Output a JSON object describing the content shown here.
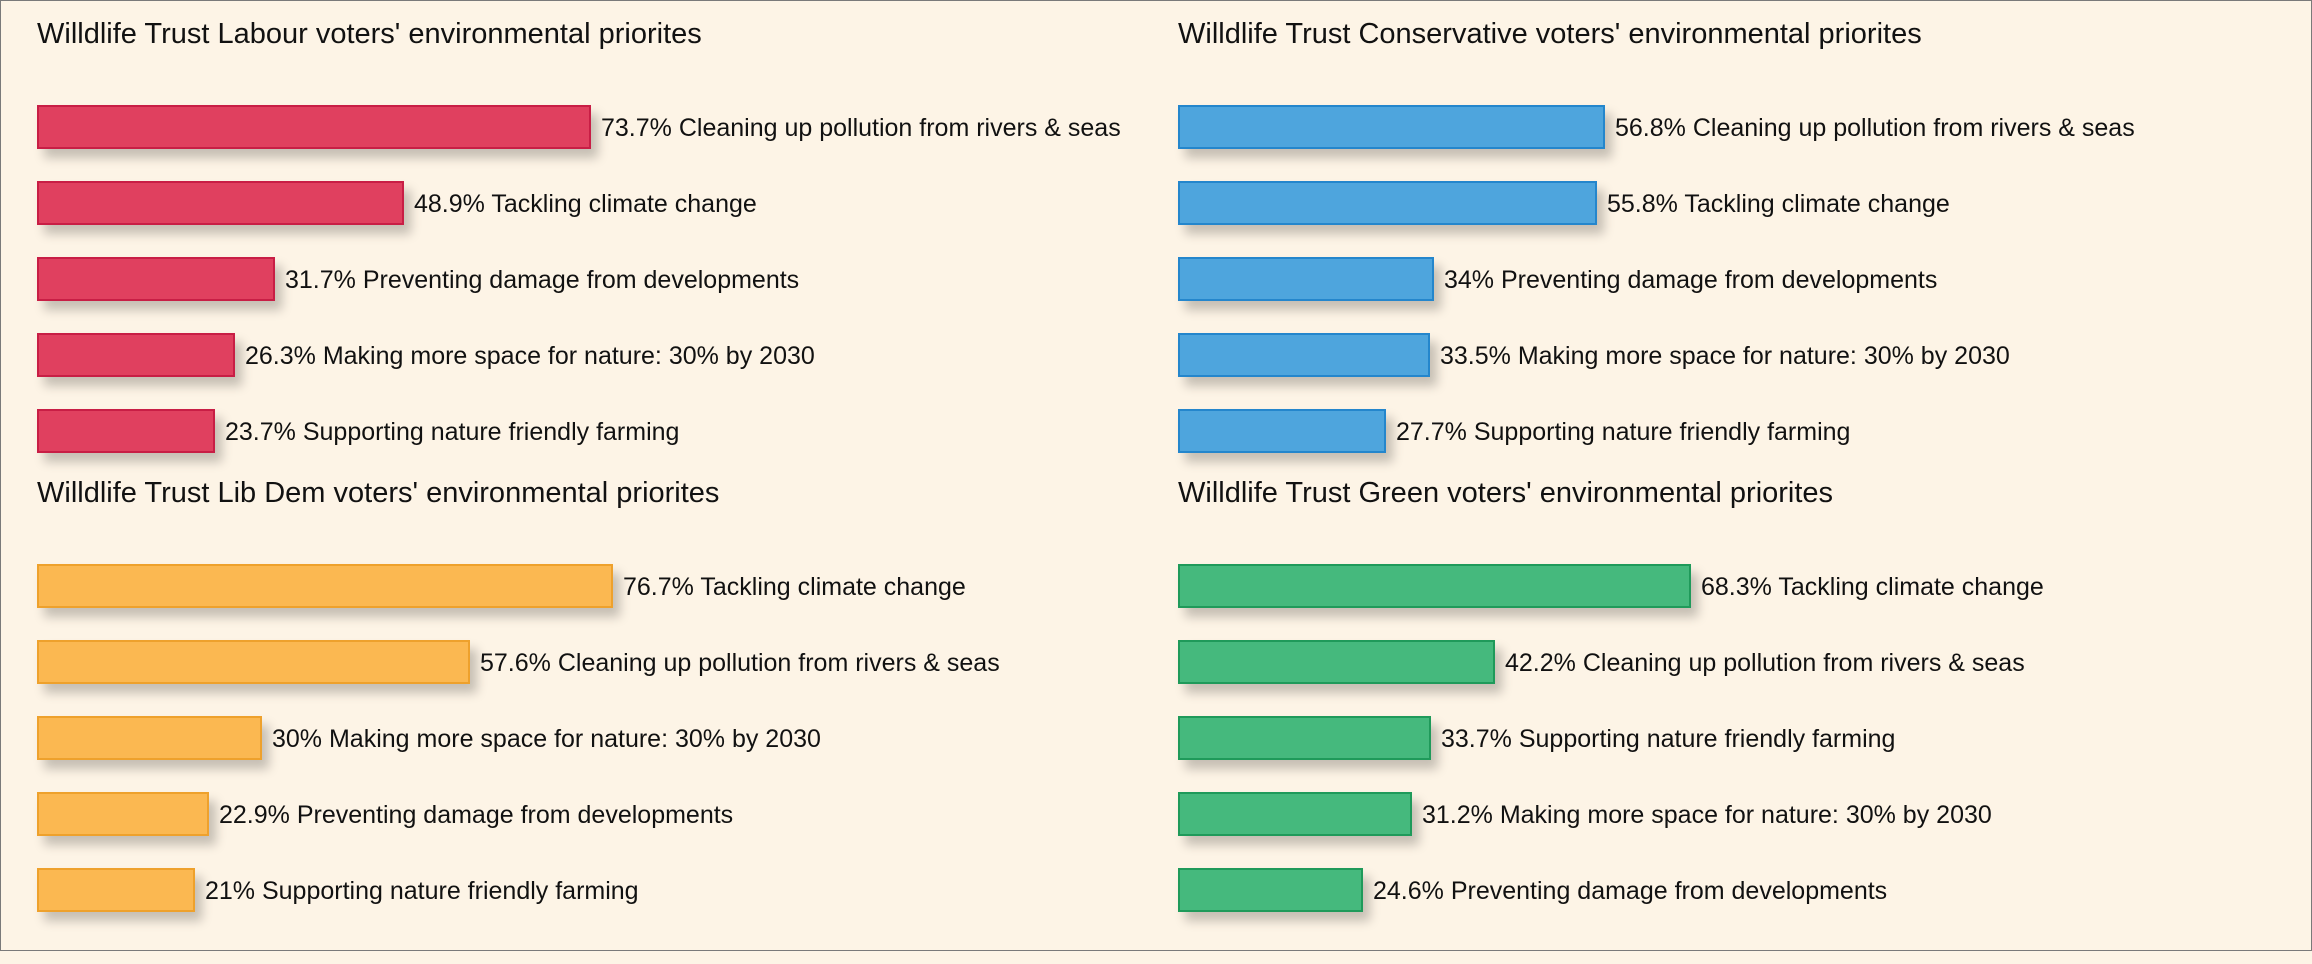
{
  "chart_data": [
    {
      "type": "bar",
      "orientation": "horizontal",
      "title": "Willdlife Trust Labour voters' environmental priorites",
      "color": "#e0405f",
      "border": "#c81e45",
      "categories": [
        "Cleaning up pollution from rivers & seas",
        "Tackling climate change",
        "Preventing damage from developments",
        "Making more space for nature: 30% by 2030",
        "Supporting nature friendly farming"
      ],
      "values": [
        73.7,
        48.9,
        31.7,
        26.3,
        23.7
      ],
      "value_labels": [
        "73.7%",
        "48.9%",
        "31.7%",
        "26.3%",
        "23.7%"
      ]
    },
    {
      "type": "bar",
      "orientation": "horizontal",
      "title": "Willdlife Trust Conservative voters' environmental priorites",
      "color": "#4ea5dd",
      "border": "#2486cc",
      "categories": [
        "Cleaning up pollution from rivers & seas",
        "Tackling climate change",
        "Preventing damage from developments",
        "Making more space for nature: 30% by 2030",
        "Supporting nature friendly farming"
      ],
      "values": [
        56.8,
        55.8,
        34,
        33.5,
        27.7
      ],
      "value_labels": [
        "56.8%",
        "55.8%",
        "34%",
        "33.5%",
        "27.7%"
      ]
    },
    {
      "type": "bar",
      "orientation": "horizontal",
      "title": "Willdlife Trust Lib Dem voters' environmental priorites",
      "color": "#fbb851",
      "border": "#eea12c",
      "categories": [
        "Tackling climate change",
        "Cleaning up pollution from rivers & seas",
        "Making more space for nature: 30% by 2030",
        "Preventing damage from developments",
        "Supporting nature friendly farming"
      ],
      "values": [
        76.7,
        57.6,
        30,
        22.9,
        21
      ],
      "value_labels": [
        "76.7%",
        "57.6%",
        "30%",
        "22.9%",
        "21%"
      ]
    },
    {
      "type": "bar",
      "orientation": "horizontal",
      "title": "Willdlife Trust Green voters' environmental priorites",
      "color": "#45b97d",
      "border": "#1f9a5a",
      "categories": [
        "Tackling climate change",
        "Cleaning up pollution from rivers & seas",
        "Supporting nature friendly farming",
        "Making more space for nature: 30% by 2030",
        "Preventing damage from developments"
      ],
      "values": [
        68.3,
        42.2,
        33.7,
        31.2,
        24.6
      ],
      "value_labels": [
        "68.3%",
        "42.2%",
        "33.7%",
        "31.2%",
        "24.6%"
      ]
    }
  ]
}
